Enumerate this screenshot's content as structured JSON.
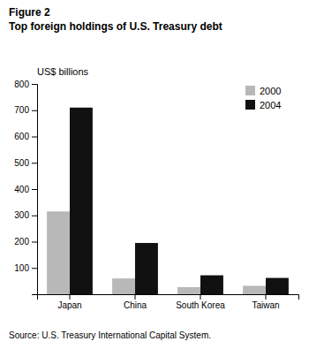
{
  "chart_data": {
    "type": "bar",
    "title": "Top foreign holdings of U.S. Treasury debt",
    "y_label": "US$ billions",
    "annotations": [
      "Figure 2",
      "Source: U.S. Treasury International Capital System."
    ],
    "categories": [
      "Japan",
      "China",
      "South Korea",
      "Taiwan"
    ],
    "series": [
      {
        "name": "2000",
        "color": "#b8b8b8",
        "values": [
          315,
          60,
          27,
          32
        ]
      },
      {
        "name": "2004",
        "color": "#111111",
        "values": [
          710,
          195,
          72,
          62
        ]
      }
    ],
    "ylim": [
      0,
      800
    ],
    "yticks": [
      100,
      200,
      300,
      400,
      500,
      600,
      700,
      800
    ],
    "grid": false,
    "legend": "upper right"
  }
}
